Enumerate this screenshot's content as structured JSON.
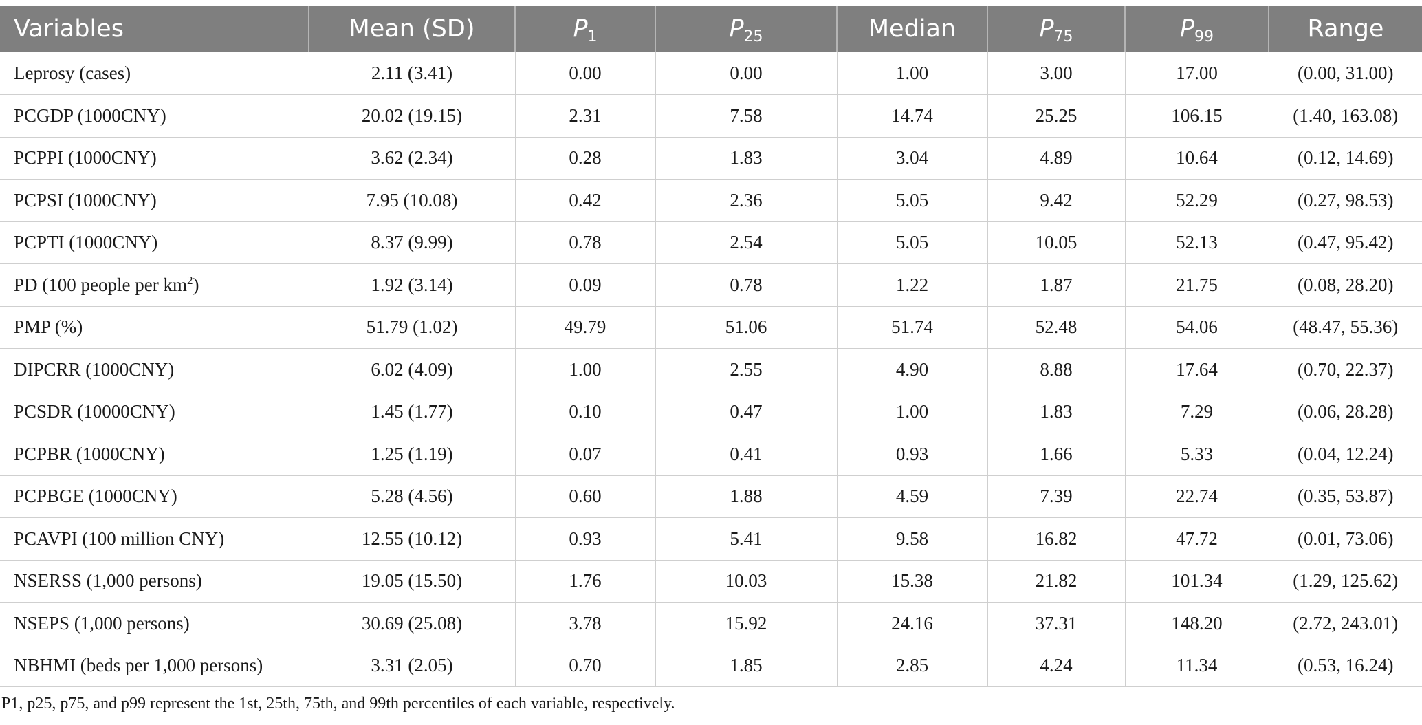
{
  "table": {
    "headers": [
      {
        "text": "Variables"
      },
      {
        "text": "Mean (SD)"
      },
      {
        "letter": "P",
        "sub": "1"
      },
      {
        "letter": "P",
        "sub": "25"
      },
      {
        "text": "Median"
      },
      {
        "letter": "P",
        "sub": "75"
      },
      {
        "letter": "P",
        "sub": "99"
      },
      {
        "text": "Range"
      }
    ],
    "rows": [
      [
        "Leprosy (cases)",
        "2.11 (3.41)",
        "0.00",
        "0.00",
        "1.00",
        "3.00",
        "17.00",
        "(0.00, 31.00)"
      ],
      [
        "PCGDP (1000CNY)",
        "20.02 (19.15)",
        "2.31",
        "7.58",
        "14.74",
        "25.25",
        "106.15",
        "(1.40, 163.08)"
      ],
      [
        "PCPPI (1000CNY)",
        "3.62 (2.34)",
        "0.28",
        "1.83",
        "3.04",
        "4.89",
        "10.64",
        "(0.12, 14.69)"
      ],
      [
        "PCPSI (1000CNY)",
        "7.95 (10.08)",
        "0.42",
        "2.36",
        "5.05",
        "9.42",
        "52.29",
        "(0.27, 98.53)"
      ],
      [
        "PCPTI (1000CNY)",
        "8.37 (9.99)",
        "0.78",
        "2.54",
        "5.05",
        "10.05",
        "52.13",
        "(0.47, 95.42)"
      ],
      [
        "PD (100 people per km",
        "1.92 (3.14)",
        "0.09",
        "0.78",
        "1.22",
        "1.87",
        "21.75",
        "(0.08, 28.20)"
      ],
      [
        "PMP (%)",
        "51.79 (1.02)",
        "49.79",
        "51.06",
        "51.74",
        "52.48",
        "54.06",
        "(48.47, 55.36)"
      ],
      [
        "DIPCRR (1000CNY)",
        "6.02 (4.09)",
        "1.00",
        "2.55",
        "4.90",
        "8.88",
        "17.64",
        "(0.70, 22.37)"
      ],
      [
        "PCSDR (10000CNY)",
        "1.45 (1.77)",
        "0.10",
        "0.47",
        "1.00",
        "1.83",
        "7.29",
        "(0.06, 28.28)"
      ],
      [
        "PCPBR (1000CNY)",
        "1.25 (1.19)",
        "0.07",
        "0.41",
        "0.93",
        "1.66",
        "5.33",
        "(0.04, 12.24)"
      ],
      [
        "PCPBGE (1000CNY)",
        "5.28 (4.56)",
        "0.60",
        "1.88",
        "4.59",
        "7.39",
        "22.74",
        "(0.35, 53.87)"
      ],
      [
        "PCAVPI (100 million CNY)",
        "12.55 (10.12)",
        "0.93",
        "5.41",
        "9.58",
        "16.82",
        "47.72",
        "(0.01, 73.06)"
      ],
      [
        "NSERSS (1,000 persons)",
        "19.05 (15.50)",
        "1.76",
        "10.03",
        "15.38",
        "21.82",
        "101.34",
        "(1.29, 125.62)"
      ],
      [
        "NSEPS (1,000 persons)",
        "30.69 (25.08)",
        "3.78",
        "15.92",
        "24.16",
        "37.31",
        "148.20",
        "(2.72, 243.01)"
      ],
      [
        "NBHMI (beds per 1,000 persons)",
        "3.31 (2.05)",
        "0.70",
        "1.85",
        "2.85",
        "4.24",
        "11.34",
        "(0.53, 16.24)"
      ]
    ],
    "pd_superscript": "2",
    "pd_suffix": ")"
  },
  "footnote": "P1, p25, p75, and p99 represent the 1st, 25th, 75th, and 99th percentiles of each variable, respectively."
}
